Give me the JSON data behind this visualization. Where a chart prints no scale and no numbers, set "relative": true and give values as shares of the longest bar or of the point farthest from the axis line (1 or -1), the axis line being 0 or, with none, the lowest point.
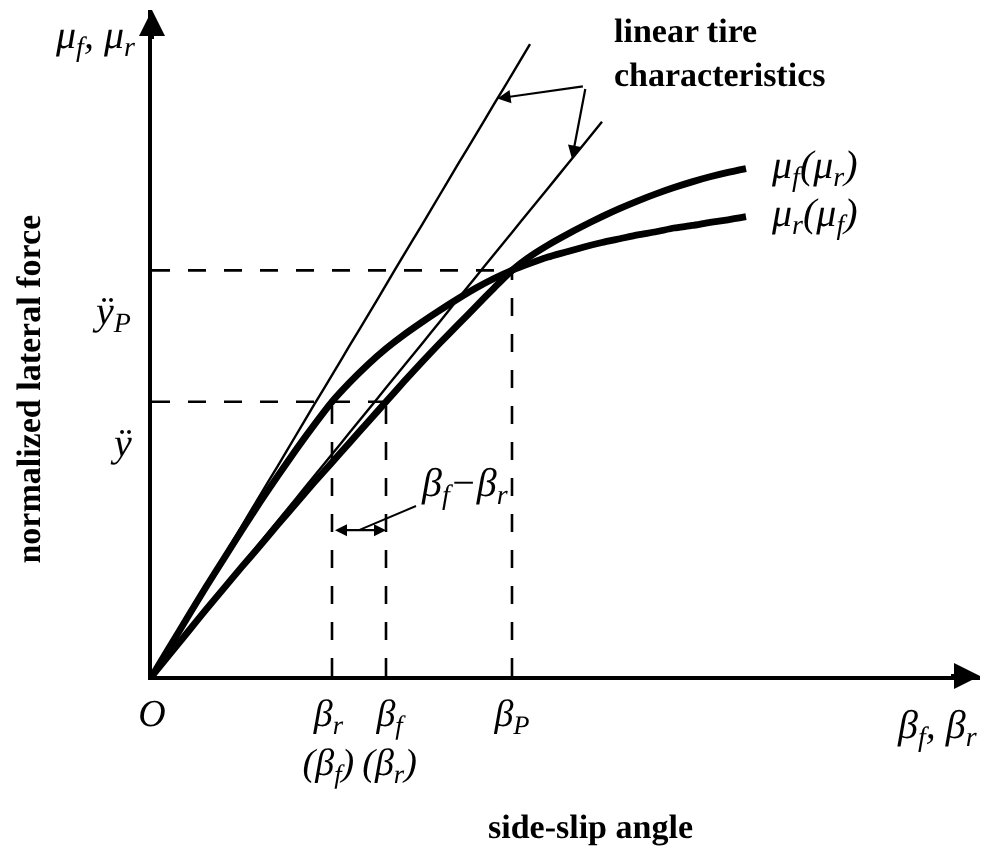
{
  "chart_data": {
    "type": "line",
    "relative": true,
    "xlabel": "side-slip angle",
    "ylabel": "normalized lateral force",
    "tick_labels": "x",
    "categories": [
      "O",
      null,
      null,
      null,
      null,
      null,
      null,
      null,
      null,
      null,
      "β$_{r}$\n(β$_{f}$)",
      null,
      null,
      "β$_{f}$\n(β$_{r}$)",
      null,
      null,
      null,
      null,
      null,
      null,
      "β$_{P}$",
      null,
      null,
      null,
      null,
      null,
      null,
      null,
      null,
      null,
      null,
      null,
      null,
      null,
      null,
      null,
      null,
      null,
      null,
      null,
      null,
      null,
      null,
      null,
      null,
      null,
      null
    ],
    "series": [
      {
        "name": "μ$_{f}$(μ$_{r}$)",
        "color": "#000000",
        "values": [
          0,
          0.035,
          0.07,
          0.105,
          0.139,
          0.173,
          0.206,
          0.24,
          0.273,
          0.306,
          0.338,
          0.37,
          0.402,
          0.434,
          0.466,
          0.497,
          0.527,
          0.556,
          0.585,
          0.614,
          0.642,
          0.664,
          0.682,
          0.698,
          0.713,
          0.727,
          0.74,
          0.752,
          0.763,
          0.773,
          0.782,
          0.79,
          0.797,
          0.803,
          null,
          null,
          null,
          null,
          null,
          null,
          null,
          null,
          null,
          null,
          null,
          null,
          null
        ]
      },
      {
        "name": "μ$_{r}$(μ$_{f}$)",
        "color": "#000000",
        "values": [
          0,
          0.047,
          0.094,
          0.141,
          0.186,
          0.231,
          0.275,
          0.317,
          0.358,
          0.397,
          0.434,
          0.465,
          0.493,
          0.518,
          0.54,
          0.56,
          0.579,
          0.597,
          0.614,
          0.629,
          0.642,
          0.653,
          0.663,
          0.671,
          0.679,
          0.686,
          0.692,
          0.698,
          0.703,
          0.709,
          0.713,
          0.718,
          0.722,
          0.727,
          null,
          null,
          null,
          null,
          null,
          null,
          null,
          null,
          null,
          null,
          null,
          null,
          null
        ]
      },
      {
        "color": "#000000",
        "values": [
          0,
          0.048,
          0.095,
          0.143,
          0.19,
          0.238,
          0.286,
          0.333,
          0.381,
          0.429,
          0.476,
          0.524,
          0.571,
          0.619,
          0.667,
          0.714,
          0.762,
          0.81,
          0.857,
          0.905,
          0.952,
          1.0,
          null,
          null,
          null,
          null,
          null,
          null,
          null,
          null,
          null,
          null,
          null,
          null,
          null,
          null,
          null,
          null,
          null,
          null,
          null,
          null,
          null,
          null,
          null,
          null,
          null
        ]
      },
      {
        "color": "#000000",
        "values": [
          0,
          0.035,
          0.07,
          0.105,
          0.14,
          0.175,
          0.211,
          0.246,
          0.281,
          0.316,
          0.351,
          0.386,
          0.421,
          0.456,
          0.491,
          0.526,
          0.561,
          0.597,
          0.632,
          0.667,
          0.702,
          0.737,
          0.772,
          0.807,
          0.842,
          0.877,
          null,
          null,
          null,
          null,
          null,
          null,
          null,
          null,
          null,
          null,
          null,
          null,
          null,
          null,
          null,
          null,
          null,
          null,
          null,
          null,
          null
        ]
      }
    ],
    "ref_lines": [
      {
        "axis": "y",
        "value": 0.642,
        "label": "ÿ$_{P}$",
        "color": "#000000",
        "line_style": "dashed"
      },
      {
        "axis": "y",
        "value": 0.434,
        "label": "ÿ",
        "color": "#000000",
        "line_style": "dashed"
      },
      {
        "axis": "x",
        "value": "β$_{r}$\n(β$_{f}$)",
        "color": "#000000",
        "line_style": "dashed"
      },
      {
        "axis": "x",
        "value": "β$_{f}$\n(β$_{r}$)",
        "color": "#000000",
        "line_style": "dashed"
      },
      {
        "axis": "x",
        "value": "β$_{P}$",
        "color": "#000000",
        "line_style": "dashed"
      }
    ],
    "annotations": [
      "μ$_{f}$, μ$_{r}$",
      "β$_{f}$, β$_{r}$",
      "linear tire\ncharacteristics",
      "β$_{f}$−β$_{r}$"
    ]
  }
}
